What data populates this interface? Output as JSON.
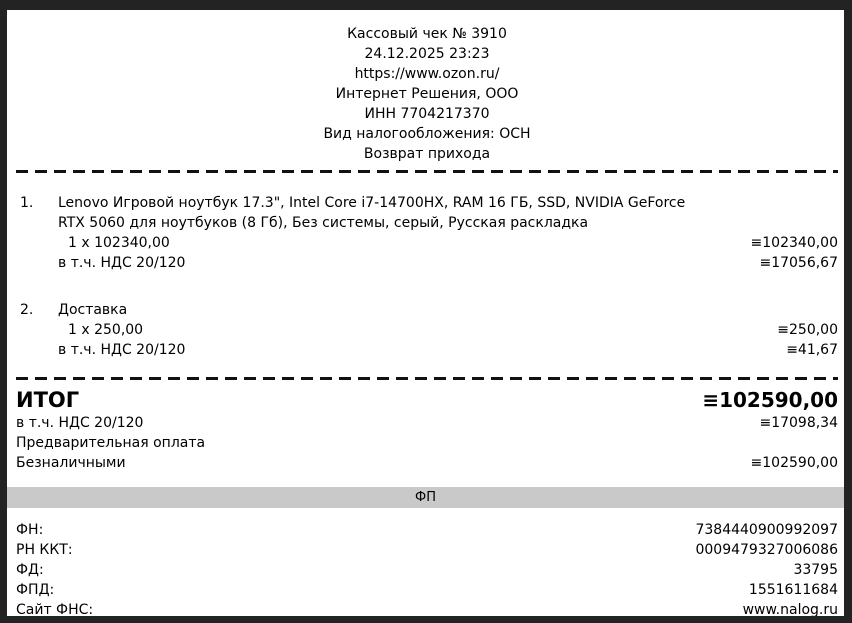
{
  "header": {
    "title": "Кассовый чек № 3910",
    "datetime": "24.12.2025 23:23",
    "url": "https://www.ozon.ru/",
    "company": "Интернет Решения, ООО",
    "inn": "ИНН 7704217370",
    "tax_system": "Вид налогообложения: ОСН",
    "operation_type": "Возврат прихода"
  },
  "items": [
    {
      "number": "1.",
      "name": "Lenovo Игровой ноутбук 17.3\", Intel Core i7-14700HX, RAM 16 ГБ, SSD, NVIDIA GeForce RTX 5060 для ноутбуков (8 Гб), Без системы, серый, Русская раскладка",
      "quantity_price": "1 x 102340,00",
      "amount": "≡102340,00",
      "vat_label": "в т.ч. НДС 20/120",
      "vat_amount": "≡17056,67"
    },
    {
      "number": "2.",
      "name": "Доставка",
      "quantity_price": "1 x 250,00",
      "amount": "≡250,00",
      "vat_label": "в т.ч. НДС 20/120",
      "vat_amount": "≡41,67"
    }
  ],
  "totals": {
    "total_label": "ИТОГ",
    "total_amount": "≡102590,00",
    "vat_label": "в т.ч. НДС 20/120",
    "vat_amount": "≡17098,34",
    "prepayment_label": "Предварительная оплата",
    "cashless_label": "Безналичными",
    "cashless_amount": "≡102590,00"
  },
  "fp": {
    "bar_label": "ФП",
    "rows": [
      {
        "label": "ФН:",
        "value": "7384440900992097"
      },
      {
        "label": "РН ККТ:",
        "value": "0009479327006086"
      },
      {
        "label": "ФД:",
        "value": "33795"
      },
      {
        "label": "ФПД:",
        "value": "1551611684"
      },
      {
        "label": "Сайт ФНС:",
        "value": "www.nalog.ru"
      }
    ]
  },
  "colors": {
    "frame": "#232323",
    "paper": "#ffffff",
    "fp_bar": "#c9c9c9"
  }
}
